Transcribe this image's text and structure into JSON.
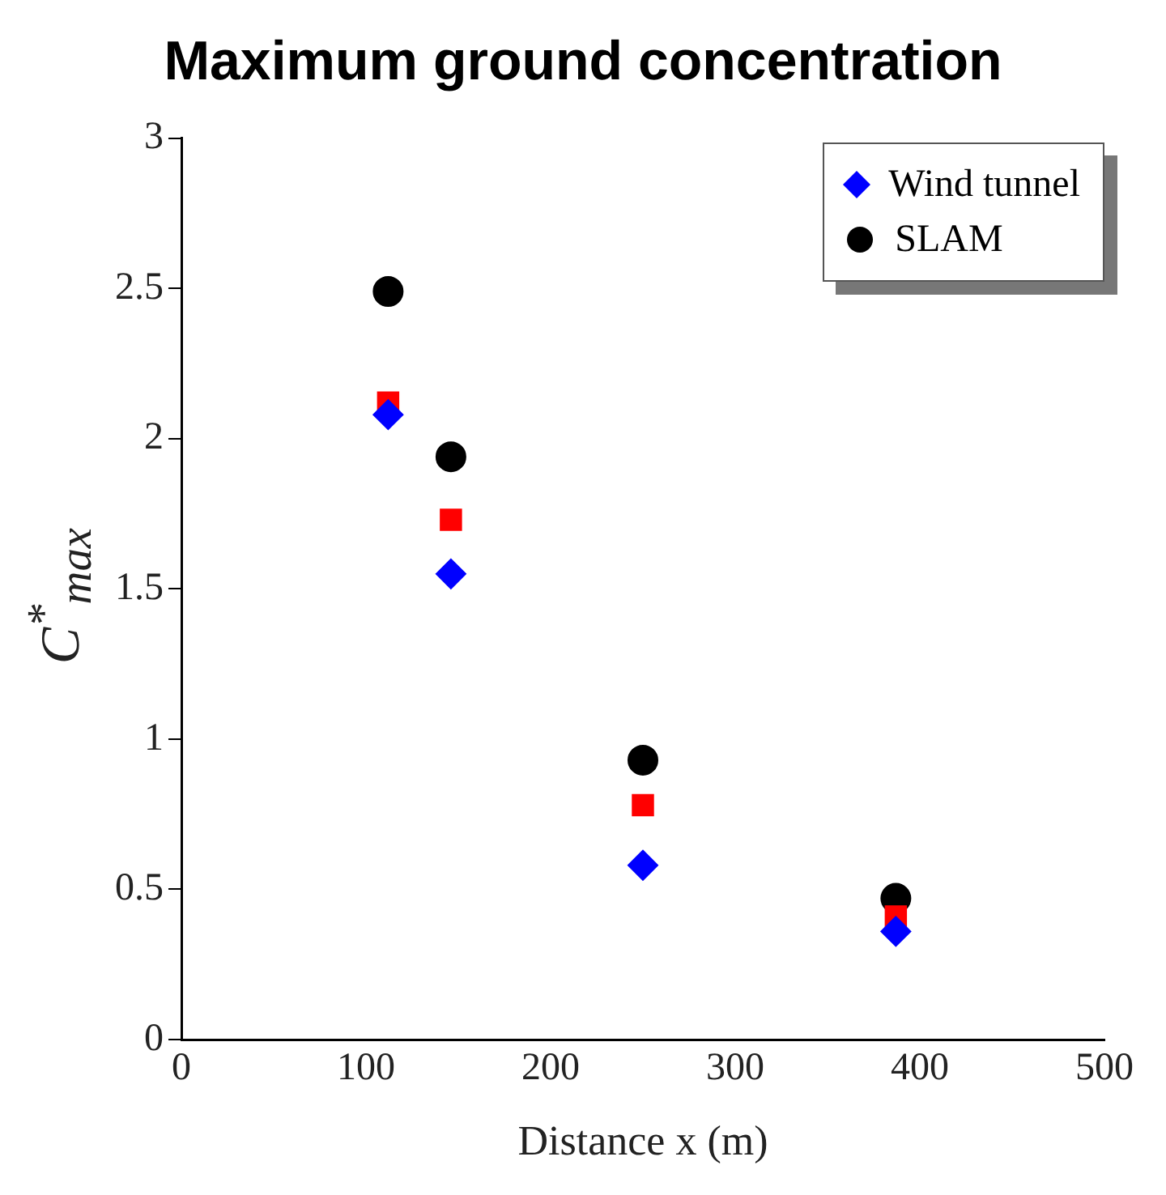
{
  "chart_data": {
    "type": "scatter",
    "title": "Maximum ground concentration",
    "xlabel": "Distance x (m)",
    "ylabel": "C$^{*}$$_{max}$",
    "x": [
      112,
      146,
      250,
      387
    ],
    "series": [
      {
        "name": "Wind tunnel",
        "color": "#0000ff",
        "marker": "diamond",
        "values": [
          2.08,
          1.55,
          0.58,
          0.36
        ]
      },
      {
        "color": "#ff0000",
        "marker": "square",
        "values": [
          2.12,
          1.73,
          0.78,
          0.41
        ]
      },
      {
        "name": "SLAM",
        "color": "#000000",
        "marker": "circle",
        "values": [
          2.49,
          1.94,
          0.93,
          0.47
        ]
      }
    ],
    "xlim": [
      0,
      500
    ],
    "xticks": [
      0,
      100,
      200,
      300,
      400,
      500
    ],
    "ylim": [
      0,
      3
    ],
    "yticks": [
      0,
      0.5,
      1,
      1.5,
      2,
      2.5,
      3
    ],
    "grid": false,
    "legend": "top right"
  }
}
